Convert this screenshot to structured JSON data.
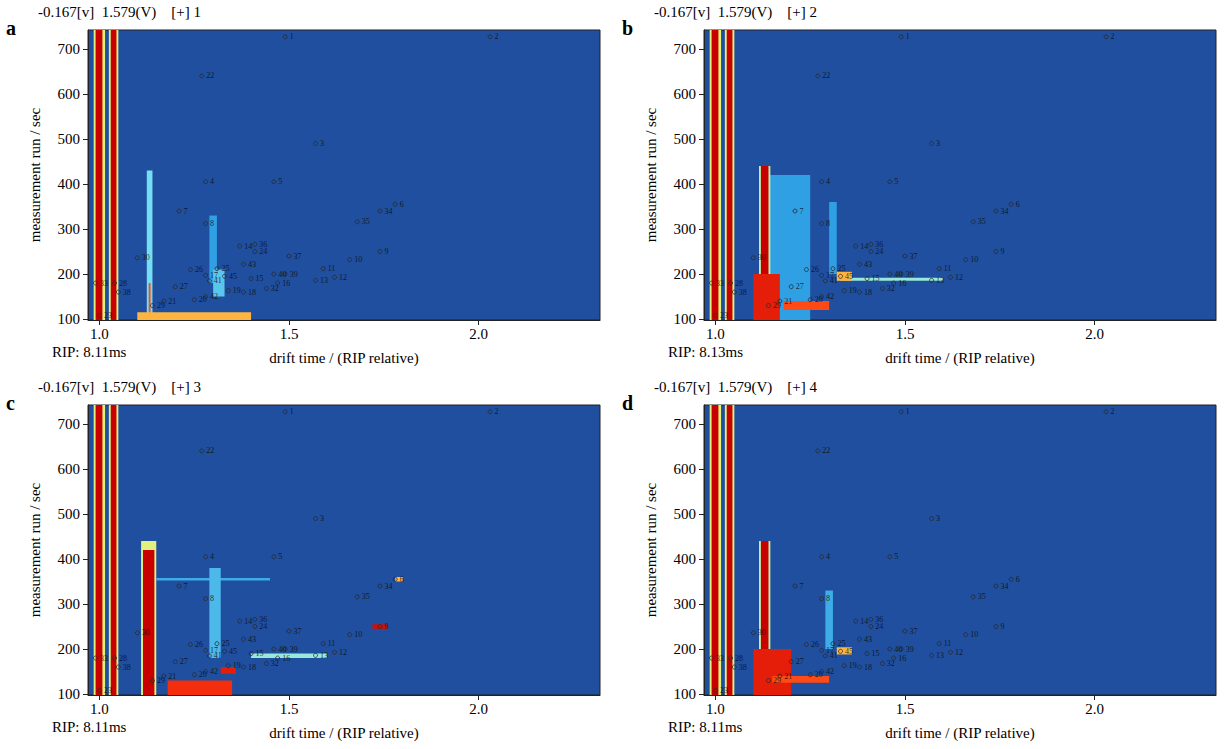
{
  "chart_data": [
    {
      "type": "heatmap",
      "panel": "a",
      "header": "-0.167[v]  1.579(V)    [+] 1",
      "annotation": "RIP: 8.11ms",
      "x_label": "drift time / (RIP relative)",
      "y_label": "measurement run / sec",
      "xlim": [
        0.97,
        2.32
      ],
      "ylim": [
        98,
        742
      ],
      "xticks": [
        {
          "value": 1,
          "label": "1.0"
        },
        {
          "value": 1.5,
          "label": "1.5"
        },
        {
          "value": 2,
          "label": "2.0"
        }
      ],
      "yticks": [
        100,
        200,
        300,
        400,
        500,
        600,
        700
      ],
      "color_range": [
        -0.167,
        1.579
      ],
      "heat_spots": [
        [
          0.985,
          1.015,
          98,
          742,
          0.8
        ],
        [
          0.99,
          1.008,
          98,
          742,
          1.579
        ],
        [
          1.025,
          1.05,
          98,
          742,
          0.8
        ],
        [
          1.03,
          1.045,
          98,
          742,
          1.579
        ],
        [
          1.125,
          1.14,
          98,
          430,
          0.5
        ],
        [
          1.13,
          1.135,
          98,
          180,
          1.2
        ],
        [
          1.29,
          1.31,
          180,
          330,
          0.25
        ],
        [
          1.3,
          1.33,
          150,
          210,
          0.4
        ],
        [
          1.1,
          1.4,
          98,
          115,
          1.0
        ]
      ],
      "markers": {
        "labels": [
          "1",
          "2",
          "3",
          "4",
          "5",
          "6",
          "7",
          "8",
          "9",
          "10",
          "11",
          "12",
          "13",
          "14",
          "15",
          "16",
          "17",
          "18",
          "19",
          "20",
          "21",
          "22",
          "23",
          "24",
          "25",
          "26",
          "27",
          "28",
          "29",
          "30",
          "32",
          "33",
          "34",
          "35",
          "36",
          "37",
          "38",
          "39",
          "40",
          "41",
          "42",
          "43",
          "45"
        ],
        "x": [
          1.49,
          2.03,
          1.57,
          1.28,
          1.46,
          1.78,
          1.21,
          1.28,
          1.74,
          1.66,
          1.59,
          1.62,
          1.57,
          1.37,
          1.4,
          1.47,
          1.28,
          1.38,
          1.34,
          1.25,
          1.17,
          1.27,
          1.0,
          1.41,
          1.31,
          1.24,
          1.2,
          1.04,
          1.14,
          1.1,
          1.44,
          0.99,
          1.74,
          1.68,
          1.41,
          1.5,
          1.05,
          1.49,
          1.46,
          1.29,
          1.28,
          1.38,
          1.33
        ],
        "y": [
          727,
          727,
          490,
          405,
          405,
          355,
          340,
          312,
          250,
          232,
          212,
          193,
          186,
          262,
          190,
          180,
          197,
          160,
          163,
          143,
          140,
          640,
          108,
          250,
          212,
          210,
          172,
          180,
          130,
          236,
          168,
          180,
          340,
          316,
          266,
          240,
          160,
          200,
          200,
          185,
          150,
          222,
          195
        ]
      }
    },
    {
      "type": "heatmap",
      "panel": "b",
      "header": "-0.167[v]  1.579(V)    [+] 2",
      "annotation": "RIP: 8.13ms",
      "x_label": "drift time / (RIP relative)",
      "y_label": "measurement run / sec",
      "xlim": [
        0.97,
        2.32
      ],
      "ylim": [
        98,
        742
      ],
      "xticks": [
        {
          "value": 1,
          "label": "1.0"
        },
        {
          "value": 1.5,
          "label": "1.5"
        },
        {
          "value": 2,
          "label": "2.0"
        }
      ],
      "yticks": [
        100,
        200,
        300,
        400,
        500,
        600,
        700
      ],
      "color_range": [
        -0.167,
        1.579
      ],
      "heat_spots": [
        [
          0.985,
          1.015,
          98,
          742,
          0.8
        ],
        [
          0.99,
          1.008,
          98,
          742,
          1.579
        ],
        [
          1.025,
          1.05,
          98,
          742,
          0.8
        ],
        [
          1.03,
          1.045,
          98,
          742,
          1.579
        ],
        [
          1.14,
          1.25,
          98,
          420,
          0.25
        ],
        [
          1.115,
          1.145,
          98,
          440,
          0.7
        ],
        [
          1.12,
          1.14,
          200,
          440,
          1.579
        ],
        [
          1.1,
          1.17,
          98,
          200,
          1.4
        ],
        [
          1.3,
          1.32,
          200,
          360,
          0.25
        ],
        [
          1.33,
          1.6,
          185,
          192,
          0.6
        ],
        [
          1.32,
          1.36,
          185,
          205,
          1.0
        ],
        [
          1.18,
          1.3,
          120,
          140,
          1.2
        ]
      ],
      "markers": {
        "labels": [
          "1",
          "2",
          "3",
          "4",
          "5",
          "6",
          "7",
          "8",
          "9",
          "10",
          "11",
          "12",
          "13",
          "14",
          "15",
          "16",
          "17",
          "18",
          "19",
          "20",
          "21",
          "22",
          "23",
          "24",
          "25",
          "26",
          "27",
          "28",
          "29",
          "30",
          "32",
          "33",
          "34",
          "35",
          "36",
          "37",
          "38",
          "39",
          "40",
          "41",
          "42",
          "43",
          "45"
        ],
        "x": [
          1.49,
          2.03,
          1.57,
          1.28,
          1.46,
          1.78,
          1.21,
          1.28,
          1.74,
          1.66,
          1.59,
          1.62,
          1.57,
          1.37,
          1.4,
          1.47,
          1.28,
          1.38,
          1.34,
          1.25,
          1.17,
          1.27,
          1.0,
          1.41,
          1.31,
          1.24,
          1.2,
          1.04,
          1.14,
          1.1,
          1.44,
          0.99,
          1.74,
          1.68,
          1.41,
          1.5,
          1.05,
          1.49,
          1.46,
          1.29,
          1.28,
          1.38,
          1.33
        ],
        "y": [
          727,
          727,
          490,
          405,
          405,
          355,
          340,
          312,
          250,
          232,
          212,
          193,
          186,
          262,
          190,
          180,
          197,
          160,
          163,
          143,
          140,
          640,
          108,
          250,
          212,
          210,
          172,
          180,
          130,
          236,
          168,
          180,
          340,
          316,
          266,
          240,
          160,
          200,
          200,
          185,
          150,
          222,
          195
        ]
      }
    },
    {
      "type": "heatmap",
      "panel": "c",
      "header": "-0.167[v]  1.579(V)    [+] 3",
      "annotation": "RIP: 8.11ms",
      "x_label": "drift time / (RIP relative)",
      "y_label": "measurement run / sec",
      "xlim": [
        0.97,
        2.32
      ],
      "ylim": [
        98,
        742
      ],
      "xticks": [
        {
          "value": 1,
          "label": "1.0"
        },
        {
          "value": 1.5,
          "label": "1.5"
        },
        {
          "value": 2,
          "label": "2.0"
        }
      ],
      "yticks": [
        100,
        200,
        300,
        400,
        500,
        600,
        700
      ],
      "color_range": [
        -0.167,
        1.579
      ],
      "heat_spots": [
        [
          0.985,
          1.015,
          98,
          742,
          0.8
        ],
        [
          0.99,
          1.008,
          98,
          742,
          1.579
        ],
        [
          1.025,
          1.05,
          98,
          742,
          0.8
        ],
        [
          1.03,
          1.045,
          98,
          742,
          1.579
        ],
        [
          1.11,
          1.15,
          98,
          440,
          0.8
        ],
        [
          1.115,
          1.145,
          98,
          420,
          1.579
        ],
        [
          1.15,
          1.45,
          352,
          358,
          0.3
        ],
        [
          1.29,
          1.32,
          180,
          380,
          0.35
        ],
        [
          1.4,
          1.6,
          180,
          190,
          0.6
        ],
        [
          1.18,
          1.35,
          98,
          130,
          1.3
        ],
        [
          1.32,
          1.36,
          145,
          160,
          1.4
        ],
        [
          1.72,
          1.76,
          245,
          255,
          1.5
        ],
        [
          1.78,
          1.8,
          350,
          360,
          1.0
        ]
      ],
      "markers": {
        "labels": [
          "1",
          "2",
          "3",
          "4",
          "5",
          "6",
          "7",
          "8",
          "9",
          "10",
          "11",
          "12",
          "13",
          "14",
          "15",
          "16",
          "17",
          "18",
          "19",
          "20",
          "21",
          "22",
          "23",
          "24",
          "25",
          "26",
          "27",
          "28",
          "29",
          "30",
          "32",
          "33",
          "34",
          "35",
          "36",
          "37",
          "38",
          "39",
          "40",
          "41",
          "42",
          "43",
          "45"
        ],
        "x": [
          1.49,
          2.03,
          1.57,
          1.28,
          1.46,
          1.78,
          1.21,
          1.28,
          1.74,
          1.66,
          1.59,
          1.62,
          1.57,
          1.37,
          1.4,
          1.47,
          1.28,
          1.38,
          1.34,
          1.25,
          1.17,
          1.27,
          1.0,
          1.41,
          1.31,
          1.24,
          1.2,
          1.04,
          1.14,
          1.1,
          1.44,
          0.99,
          1.74,
          1.68,
          1.41,
          1.5,
          1.05,
          1.49,
          1.46,
          1.29,
          1.28,
          1.38,
          1.33
        ],
        "y": [
          727,
          727,
          490,
          405,
          405,
          355,
          340,
          312,
          250,
          232,
          212,
          193,
          186,
          262,
          190,
          180,
          197,
          160,
          163,
          143,
          140,
          640,
          108,
          250,
          212,
          210,
          172,
          180,
          130,
          236,
          168,
          180,
          340,
          316,
          266,
          240,
          160,
          200,
          200,
          185,
          150,
          222,
          195
        ]
      }
    },
    {
      "type": "heatmap",
      "panel": "d",
      "header": "-0.167[v]  1.579(V)    [+] 4",
      "annotation": "RIP: 8.11ms",
      "x_label": "drift time / (RIP relative)",
      "y_label": "measurement run / sec",
      "xlim": [
        0.97,
        2.32
      ],
      "ylim": [
        98,
        742
      ],
      "xticks": [
        {
          "value": 1,
          "label": "1.0"
        },
        {
          "value": 1.5,
          "label": "1.5"
        },
        {
          "value": 2,
          "label": "2.0"
        }
      ],
      "yticks": [
        100,
        200,
        300,
        400,
        500,
        600,
        700
      ],
      "color_range": [
        -0.167,
        1.579
      ],
      "heat_spots": [
        [
          0.985,
          1.015,
          98,
          742,
          0.8
        ],
        [
          0.99,
          1.008,
          98,
          742,
          1.579
        ],
        [
          1.025,
          1.05,
          98,
          742,
          0.8
        ],
        [
          1.03,
          1.045,
          98,
          742,
          1.579
        ],
        [
          1.115,
          1.145,
          98,
          440,
          0.7
        ],
        [
          1.12,
          1.14,
          200,
          440,
          1.579
        ],
        [
          1.1,
          1.2,
          98,
          200,
          1.4
        ],
        [
          1.29,
          1.31,
          200,
          330,
          0.3
        ],
        [
          1.32,
          1.36,
          188,
          204,
          1.0
        ],
        [
          1.15,
          1.3,
          125,
          140,
          1.2
        ]
      ],
      "markers": {
        "labels": [
          "1",
          "2",
          "3",
          "4",
          "5",
          "6",
          "7",
          "8",
          "9",
          "10",
          "11",
          "12",
          "13",
          "14",
          "15",
          "16",
          "17",
          "18",
          "19",
          "20",
          "21",
          "22",
          "23",
          "24",
          "25",
          "26",
          "27",
          "28",
          "29",
          "30",
          "32",
          "33",
          "34",
          "35",
          "36",
          "37",
          "38",
          "39",
          "40",
          "41",
          "42",
          "43",
          "45"
        ],
        "x": [
          1.49,
          2.03,
          1.57,
          1.28,
          1.46,
          1.78,
          1.21,
          1.28,
          1.74,
          1.66,
          1.59,
          1.62,
          1.57,
          1.37,
          1.4,
          1.47,
          1.28,
          1.38,
          1.34,
          1.25,
          1.17,
          1.27,
          1.0,
          1.41,
          1.31,
          1.24,
          1.2,
          1.04,
          1.14,
          1.1,
          1.44,
          0.99,
          1.74,
          1.68,
          1.41,
          1.5,
          1.05,
          1.49,
          1.46,
          1.29,
          1.28,
          1.38,
          1.33
        ],
        "y": [
          727,
          727,
          490,
          405,
          405,
          355,
          340,
          312,
          250,
          232,
          212,
          193,
          186,
          262,
          190,
          180,
          197,
          160,
          163,
          143,
          140,
          640,
          108,
          250,
          212,
          210,
          172,
          180,
          130,
          236,
          168,
          180,
          340,
          316,
          266,
          240,
          160,
          200,
          200,
          185,
          150,
          222,
          195
        ]
      }
    }
  ]
}
